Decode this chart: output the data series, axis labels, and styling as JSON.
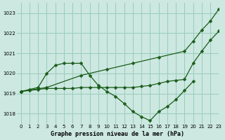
{
  "title": "Graphe pression niveau de la mer (hPa)",
  "background_color": "#cce8e0",
  "grid_color": "#99ccbb",
  "line_color": "#1a5c1a",
  "xlim": [
    -0.5,
    23
  ],
  "ylim": [
    1017.5,
    1023.5
  ],
  "yticks": [
    1018,
    1019,
    1020,
    1021,
    1022,
    1023
  ],
  "xticks": [
    0,
    1,
    2,
    3,
    4,
    5,
    6,
    7,
    8,
    9,
    10,
    11,
    12,
    13,
    14,
    15,
    16,
    17,
    18,
    19,
    20,
    21,
    22,
    23
  ],
  "lines": [
    {
      "x": [
        0,
        3,
        7,
        10,
        13,
        16,
        19,
        20,
        21,
        22,
        23
      ],
      "y": [
        1019.1,
        1019.3,
        1019.9,
        1020.2,
        1020.5,
        1020.8,
        1021.1,
        1021.6,
        1022.15,
        1022.6,
        1023.2
      ],
      "marker": "D",
      "markersize": 2.5,
      "has_markers": true
    },
    {
      "x": [
        0,
        1,
        2,
        3,
        4,
        5,
        6,
        7,
        8,
        9,
        10,
        11,
        12,
        13,
        14,
        15,
        16,
        17,
        18,
        19,
        20
      ],
      "y": [
        1019.1,
        1019.2,
        1019.3,
        1020.0,
        1020.4,
        1020.5,
        1020.5,
        1020.5,
        1019.9,
        1019.4,
        1019.1,
        1018.85,
        1018.5,
        1018.1,
        1017.85,
        1017.65,
        1018.1,
        1018.35,
        1018.7,
        1019.15,
        1019.6
      ],
      "marker": "D",
      "markersize": 2.5,
      "has_markers": true
    },
    {
      "x": [
        0,
        1,
        2,
        3,
        4,
        5,
        6,
        7,
        8,
        9,
        10,
        11,
        12,
        13,
        14,
        15,
        16,
        17,
        18,
        19,
        20,
        21,
        22,
        23
      ],
      "y": [
        1019.1,
        1019.15,
        1019.2,
        1019.25,
        1019.25,
        1019.25,
        1019.25,
        1019.3,
        1019.3,
        1019.3,
        1019.3,
        1019.3,
        1019.3,
        1019.3,
        1019.35,
        1019.4,
        1019.5,
        1019.6,
        1019.65,
        1019.7,
        1020.5,
        1021.1,
        1021.65,
        1022.1
      ],
      "marker": "D",
      "markersize": 2.5,
      "has_markers": true
    }
  ]
}
